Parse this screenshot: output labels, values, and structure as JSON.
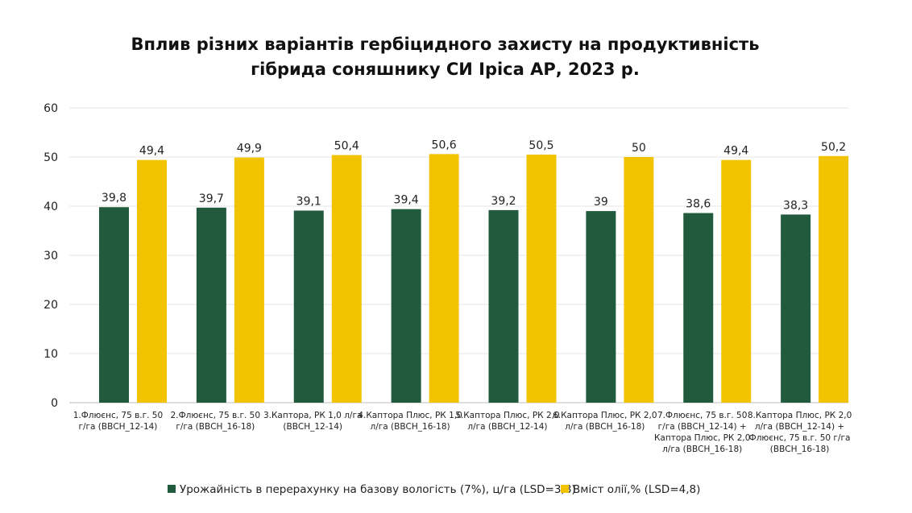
{
  "title_lines": [
    "Вплив різних варіантів гербіцидного захисту на продуктивність",
    "гібрида соняшнику СИ Іріса АР, 2023 р."
  ],
  "colors": {
    "yield": "#215a3c",
    "oil": "#f2c300",
    "grid": "#e6e6e6",
    "axis": "#bfbfbf"
  },
  "chart_data": {
    "type": "bar",
    "title": "Вплив різних варіантів гербіцидного захисту на продуктивність гібрида соняшнику СИ Іріса АР, 2023 р.",
    "ylim": [
      0,
      60
    ],
    "yticks": [
      0,
      10,
      20,
      30,
      40,
      50,
      60
    ],
    "grid": true,
    "legend_position": "bottom",
    "categories": [
      [
        "1.Флюєнс, 75 в.г. 50",
        "г/га (ВВСН_12-14)"
      ],
      [
        "2.Флюєнс, 75 в.г. 50",
        "г/га (ВВСН_16-18)"
      ],
      [
        "3.Каптора, РК 1,0 л/га",
        "(ВВСН_12-14)"
      ],
      [
        "4.Каптора Плюс, РК 1,0",
        "л/га (ВВСН_16-18)"
      ],
      [
        "5.Каптора Плюс, РК 2,0",
        "л/га (ВВСН_12-14)"
      ],
      [
        "6.Каптора Плюс, РК 2,0",
        "л/га (ВВСН_16-18)"
      ],
      [
        "7.Флюєнс, 75 в.г. 50",
        "г/га (ВВСН_12-14) +",
        "Каптора Плюс, РК 2,0",
        "л/га (ВВСН_16-18)"
      ],
      [
        "8.Каптора Плюс, РК 2,0",
        "л/га (ВВСН_12-14) +",
        "Флюєнс, 75 в.г. 50 г/га",
        "(ВВСН_16-18)"
      ]
    ],
    "series": [
      {
        "name": "Урожайність в перерахунку на базову вологість (7%), ц/га (LSD=3,8)",
        "color_key": "yield",
        "values": [
          39.8,
          39.7,
          39.1,
          39.4,
          39.2,
          39,
          38.6,
          38.3
        ],
        "labels": [
          "39,8",
          "39,7",
          "39,1",
          "39,4",
          "39,2",
          "39",
          "38,6",
          "38,3"
        ]
      },
      {
        "name": "Вміст олії,% (LSD=4,8)",
        "color_key": "oil",
        "values": [
          49.4,
          49.9,
          50.4,
          50.6,
          50.5,
          50,
          49.4,
          50.2
        ],
        "labels": [
          "49,4",
          "49,9",
          "50,4",
          "50,6",
          "50,5",
          "50",
          "49,4",
          "50,2"
        ]
      }
    ]
  }
}
